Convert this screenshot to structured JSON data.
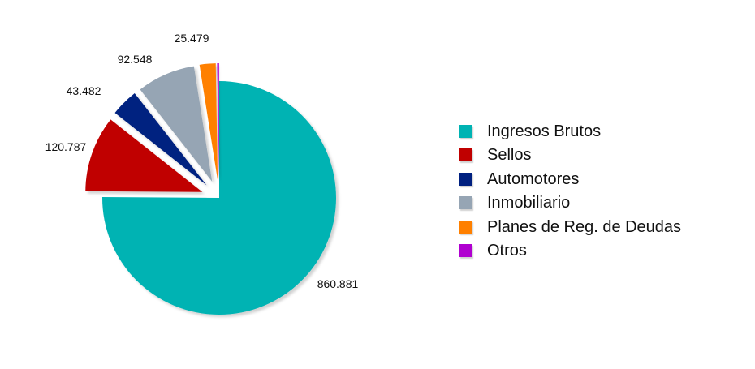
{
  "chart_data": {
    "type": "pie",
    "title": "",
    "slices": [
      {
        "name": "Ingresos Brutos",
        "value": 860881,
        "label": "860.881",
        "color": "#00b3b3"
      },
      {
        "name": "Sellos",
        "value": 120787,
        "label": "120.787",
        "color": "#c00000"
      },
      {
        "name": "Automotores",
        "value": 43482,
        "label": "43.482",
        "color": "#002080"
      },
      {
        "name": "Inmobiliario",
        "value": 92548,
        "label": "92.548",
        "color": "#96a5b4"
      },
      {
        "name": "Planes de Reg. de Deudas",
        "value": 25479,
        "label": "25.479",
        "color": "#ff8000"
      },
      {
        "name": "Otros",
        "value": 3000,
        "label": "",
        "color": "#b000d0"
      }
    ],
    "legend_position": "right",
    "exploded": true,
    "shadow": true
  }
}
